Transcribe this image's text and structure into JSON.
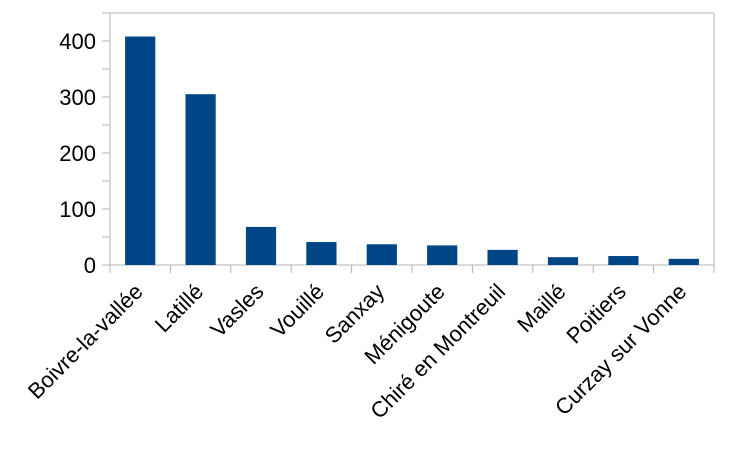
{
  "chart_data": {
    "type": "bar",
    "categories": [
      "Boivre-la-vallée",
      "Latillé",
      "Vasles",
      "Vouillé",
      "Sanxay",
      "Ménigoute",
      "Chiré en Montreuil",
      "Maillé",
      "Poitiers",
      "Curzay sur Vonne"
    ],
    "values": [
      408,
      305,
      68,
      41,
      37,
      35,
      27,
      14,
      16,
      11
    ],
    "title": "",
    "xlabel": "",
    "ylabel": "",
    "ylim": [
      0,
      450
    ],
    "yticks": [
      0,
      100,
      200,
      300,
      400
    ],
    "grid": false,
    "legend": "none",
    "bar_color": "#004586",
    "axis_color": "#b3b3b3"
  }
}
